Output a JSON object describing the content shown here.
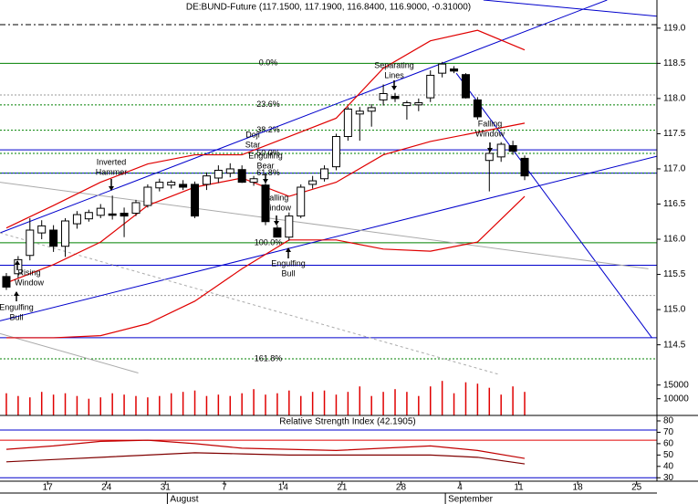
{
  "chart_data": {
    "type": "candlestick",
    "title": "DE:BUND-Future (117.1500, 117.1900, 116.8400, 116.9000, -0.31000)",
    "xlim": [
      -0.54,
      55.23
    ],
    "xticks": [
      {
        "value": 3.5,
        "label": "17"
      },
      {
        "value": 8.5,
        "label": "24"
      },
      {
        "value": 13.5,
        "label": "31"
      },
      {
        "value": 18.5,
        "label": "7"
      },
      {
        "value": 23.5,
        "label": "14"
      },
      {
        "value": 28.5,
        "label": "21"
      },
      {
        "value": 33.5,
        "label": "28"
      },
      {
        "value": 38.5,
        "label": "4"
      },
      {
        "value": 43.5,
        "label": "11"
      },
      {
        "value": 48.5,
        "label": "18"
      },
      {
        "value": 53.5,
        "label": "25"
      }
    ],
    "months": [
      {
        "value": 13.9,
        "label": "August"
      },
      {
        "value": 37.5,
        "label": "September"
      }
    ],
    "ylim": [
      114.08,
      119.4
    ],
    "yticks": [
      {
        "value": 119.0,
        "label": "119.0"
      },
      118.5,
      {
        "value": 118.0,
        "label": "118.0"
      },
      117.5,
      {
        "value": 117.0,
        "label": "117.0"
      },
      116.5,
      {
        "value": 116.0,
        "label": "116.0"
      },
      115.5,
      {
        "value": 115.0,
        "label": "115.0"
      },
      114.5
    ],
    "up_color": "#ffffff",
    "down_color": "#000000",
    "open": [
      115.47,
      115.51,
      115.77,
      116.09,
      116.13,
      115.9,
      116.22,
      116.29,
      116.34,
      116.36,
      116.37,
      116.37,
      116.48,
      116.73,
      116.77,
      116.78,
      116.78,
      116.78,
      116.87,
      116.94,
      116.99,
      116.81,
      116.77,
      116.16,
      116.03,
      116.33,
      116.78,
      116.86,
      117.03,
      117.46,
      117.78,
      117.82,
      117.98,
      118.03,
      117.9,
      117.91,
      118.01,
      118.36,
      118.42,
      118.34,
      117.98,
      117.12,
      117.17,
      117.33,
      117.15
    ],
    "high": [
      115.52,
      115.76,
      116.3,
      116.27,
      116.2,
      116.3,
      116.4,
      116.42,
      116.5,
      116.62,
      116.45,
      116.56,
      116.78,
      116.86,
      116.84,
      116.84,
      116.82,
      116.95,
      117.05,
      117.08,
      117.05,
      116.9,
      116.82,
      116.2,
      116.38,
      116.78,
      116.9,
      117.05,
      117.5,
      117.88,
      117.88,
      117.92,
      118.2,
      118.08,
      117.97,
      118.0,
      118.4,
      118.52,
      118.46,
      118.36,
      118.02,
      117.3,
      117.38,
      117.4,
      117.19
    ],
    "low": [
      115.28,
      115.45,
      115.7,
      116.0,
      115.82,
      115.75,
      116.15,
      116.25,
      116.3,
      116.28,
      116.03,
      116.33,
      116.45,
      116.68,
      116.72,
      116.7,
      116.3,
      116.7,
      116.8,
      116.88,
      116.8,
      116.76,
      116.2,
      116.03,
      115.98,
      116.3,
      116.72,
      116.82,
      116.98,
      117.4,
      117.4,
      117.6,
      117.9,
      117.95,
      117.7,
      117.82,
      117.95,
      118.3,
      118.36,
      118.0,
      117.7,
      116.68,
      117.1,
      117.2,
      116.84
    ],
    "close": [
      115.32,
      115.71,
      116.13,
      116.19,
      115.9,
      116.26,
      116.35,
      116.38,
      116.44,
      116.34,
      116.33,
      116.52,
      116.74,
      116.81,
      116.81,
      116.74,
      116.33,
      116.9,
      116.98,
      117.0,
      116.81,
      116.86,
      116.25,
      116.03,
      116.33,
      116.74,
      116.83,
      117.0,
      117.46,
      117.85,
      117.82,
      117.87,
      118.07,
      118.0,
      117.94,
      117.94,
      118.33,
      118.49,
      118.39,
      118.01,
      117.74,
      117.22,
      117.35,
      117.25,
      116.9
    ],
    "overlays": [
      {
        "color": "#e00000",
        "x": [
          0,
          4,
          8,
          12,
          16,
          20,
          24,
          28,
          32,
          36,
          40,
          44
        ],
        "values": [
          116.16,
          116.48,
          116.81,
          117.07,
          117.2,
          117.2,
          117.46,
          117.72,
          118.43,
          118.82,
          118.97,
          118.69
        ]
      },
      {
        "color": "#e00000",
        "x": [
          0,
          4,
          8,
          12,
          16,
          20,
          24,
          28,
          32,
          36,
          40,
          44
        ],
        "values": [
          115.38,
          115.64,
          115.96,
          116.48,
          116.74,
          116.87,
          116.61,
          116.81,
          117.2,
          117.39,
          117.52,
          117.65
        ]
      },
      {
        "color": "#e00000",
        "x": [
          0,
          4,
          8,
          12,
          16,
          20,
          24,
          28,
          32,
          36,
          40,
          44
        ],
        "values": [
          114.6,
          114.6,
          114.63,
          114.8,
          115.12,
          115.58,
          115.99,
          115.99,
          115.86,
          115.83,
          115.96,
          116.61
        ]
      }
    ],
    "hlines": [
      {
        "value": 119.05,
        "color": "#000000",
        "dash": "6 3 2 3"
      },
      {
        "value": 118.05,
        "color": "#999999",
        "dash": "2 2"
      },
      {
        "value": 117.27,
        "color": "#0000cc",
        "dash": ""
      },
      {
        "value": 116.94,
        "color": "#0000cc",
        "dash": ""
      },
      {
        "value": 115.63,
        "color": "#0000cc",
        "dash": ""
      },
      {
        "value": 115.2,
        "color": "#999999",
        "dash": "2 2"
      },
      {
        "value": 114.6,
        "color": "#0000cc",
        "dash": ""
      }
    ],
    "fib_color": "#008000",
    "fib": [
      {
        "label": "0.0%",
        "value": 118.5,
        "dash": ""
      },
      {
        "label": "23.6%",
        "value": 117.91,
        "dash": "2 2"
      },
      {
        "label": "38.2%",
        "value": 117.55,
        "dash": "2 2"
      },
      {
        "label": "50.0%",
        "value": 117.22,
        "dash": "2 2"
      },
      {
        "label": "61.8%",
        "value": 116.94,
        "dash": "2 2"
      },
      {
        "label": "100.0%",
        "value": 115.95,
        "dash": ""
      },
      {
        "label": "161.8%",
        "value": 114.3,
        "dash": "2 2"
      }
    ],
    "trendlines": [
      {
        "color": "#0000cc",
        "dash": "",
        "x": [
          -0.54,
          51.0
        ],
        "values": [
          116.09,
          119.4
        ]
      },
      {
        "color": "#0000cc",
        "dash": "",
        "x": [
          -0.54,
          55.23
        ],
        "values": [
          114.84,
          117.18
        ]
      },
      {
        "color": "#0000cc",
        "dash": "",
        "x": [
          38.2,
          54.8
        ],
        "values": [
          118.36,
          114.6
        ]
      },
      {
        "color": "#0000cc",
        "dash": "",
        "x": [
          40.5,
          55.23
        ],
        "values": [
          119.4,
          119.17
        ]
      },
      {
        "color": "#aaaaaa",
        "dash": "",
        "x": [
          -0.54,
          54.5
        ],
        "values": [
          116.81,
          115.58
        ]
      },
      {
        "color": "#aaaaaa",
        "dash": "3 3",
        "x": [
          -0.54,
          41.8
        ],
        "values": [
          116.09,
          114.08
        ]
      },
      {
        "color": "#aaaaaa",
        "dash": "",
        "x": [
          -0.54,
          11.2
        ],
        "values": [
          114.66,
          114.1
        ]
      }
    ],
    "annotations": [
      {
        "lines": [
          "Separating",
          "Lines"
        ]
      },
      {
        "lines": [
          "Inverted",
          "Hammer"
        ]
      },
      {
        "lines": [
          "Doji",
          "Star"
        ]
      },
      {
        "lines": [
          "Engulfing",
          "Bear"
        ]
      },
      {
        "lines": [
          "Falling",
          "Window"
        ]
      },
      {
        "lines": [
          "Falling",
          "Window"
        ]
      },
      {
        "lines": [
          "Rising",
          "Window"
        ]
      },
      {
        "lines": [
          "Engulfing",
          "Bull"
        ]
      },
      {
        "lines": [
          "Engulfing",
          "Bull"
        ]
      }
    ],
    "volume": {
      "color": "#e00000",
      "ylim": [
        3900,
        18900
      ],
      "yticks": [
        10000,
        15000
      ],
      "values": [
        12000,
        11000,
        10500,
        12500,
        11500,
        12000,
        11000,
        10000,
        10500,
        12000,
        11500,
        11000,
        10500,
        11000,
        12000,
        12500,
        13000,
        11000,
        11500,
        11000,
        12000,
        13500,
        11500,
        12000,
        13000,
        11000,
        12500,
        13000,
        11500,
        12500,
        14500,
        11000,
        12500,
        13500,
        12500,
        11000,
        14500,
        16500,
        12000,
        16000,
        15500,
        14000,
        11500,
        14500,
        12500
      ]
    },
    "rsi": {
      "title": "Relative Strength Index (42.1905)",
      "ylim": [
        27,
        84
      ],
      "yticks": [
        30,
        40,
        50,
        60,
        70,
        80
      ],
      "levels": [
        72,
        63,
        30
      ],
      "level_colors": [
        "#0000cc",
        "#e00000",
        "#0000cc"
      ],
      "series": [
        {
          "color": "#c00000",
          "x": [
            0,
            4,
            8,
            12,
            16,
            20,
            24,
            28,
            32,
            36,
            40,
            44
          ],
          "values": [
            55,
            58,
            62,
            63,
            60,
            56,
            55,
            54,
            56,
            58,
            54,
            47
          ]
        },
        {
          "color": "#800000",
          "x": [
            0,
            4,
            8,
            12,
            16,
            20,
            24,
            28,
            32,
            36,
            40,
            44
          ],
          "values": [
            44,
            46,
            48,
            50,
            52,
            51,
            50,
            50,
            50,
            50,
            48,
            42.19
          ]
        }
      ]
    }
  }
}
